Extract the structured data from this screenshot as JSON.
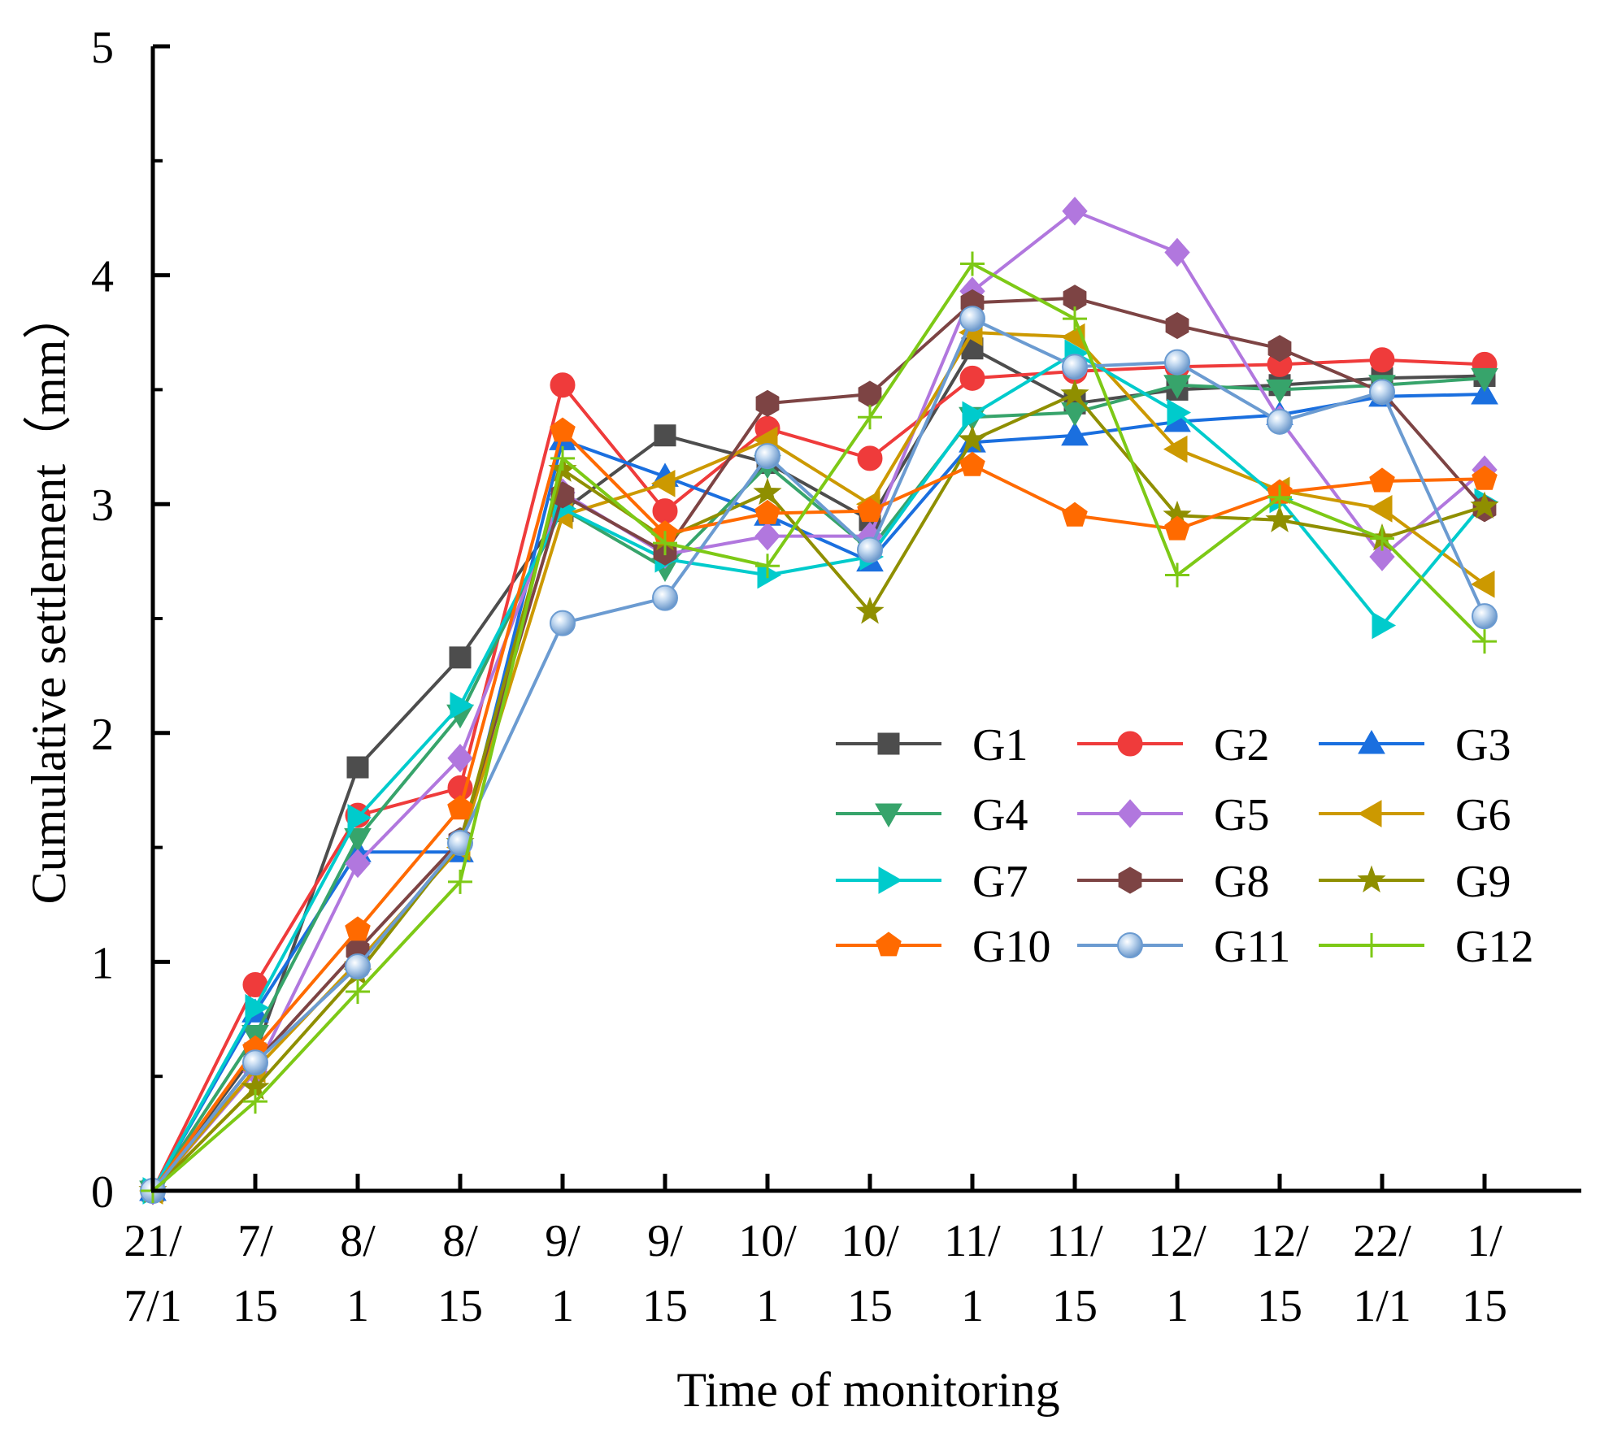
{
  "chart_data": {
    "type": "line",
    "title": "",
    "xlabel": "Time of monitoring",
    "ylabel": "Cumulative settlement（mm）",
    "ylim": [
      0,
      5
    ],
    "yticks": [
      "0",
      "1",
      "2",
      "3",
      "4",
      "5"
    ],
    "categories": [
      [
        "21/",
        "7/1"
      ],
      [
        "7/",
        "15"
      ],
      [
        "8/",
        "1"
      ],
      [
        "8/",
        "15"
      ],
      [
        "9/",
        "1"
      ],
      [
        "9/",
        "15"
      ],
      [
        "10/",
        "1"
      ],
      [
        "10/",
        "15"
      ],
      [
        "11/",
        "1"
      ],
      [
        "11/",
        "15"
      ],
      [
        "12/",
        "1"
      ],
      [
        "12/",
        "15"
      ],
      [
        "22/",
        "1/1"
      ],
      [
        "1/",
        "15"
      ]
    ],
    "legend_position": "right-center",
    "series": [
      {
        "name": "G1",
        "color": "#4d4d4d",
        "marker": "square",
        "values": [
          0,
          0.6,
          1.85,
          2.33,
          2.97,
          3.3,
          3.18,
          2.93,
          3.68,
          3.44,
          3.5,
          3.52,
          3.55,
          3.56
        ]
      },
      {
        "name": "G2",
        "color": "#ef3b3b",
        "marker": "circle",
        "values": [
          0,
          0.9,
          1.64,
          1.76,
          3.52,
          2.97,
          3.33,
          3.2,
          3.55,
          3.58,
          3.6,
          3.61,
          3.63,
          3.61
        ]
      },
      {
        "name": "G3",
        "color": "#1a6fdf",
        "marker": "triangle-up",
        "values": [
          0,
          0.78,
          1.48,
          1.48,
          3.28,
          3.12,
          2.95,
          2.75,
          3.27,
          3.3,
          3.36,
          3.39,
          3.47,
          3.48
        ]
      },
      {
        "name": "G4",
        "color": "#37a46b",
        "marker": "triangle-down",
        "values": [
          0,
          0.68,
          1.54,
          2.08,
          2.98,
          2.72,
          3.17,
          2.8,
          3.38,
          3.4,
          3.52,
          3.5,
          3.52,
          3.55
        ]
      },
      {
        "name": "G5",
        "color": "#b177de",
        "marker": "diamond",
        "values": [
          0,
          0.52,
          1.43,
          1.89,
          3.05,
          2.78,
          2.86,
          2.86,
          3.93,
          4.28,
          4.1,
          3.37,
          2.77,
          3.15
        ]
      },
      {
        "name": "G6",
        "color": "#cc9900",
        "marker": "triangle-left",
        "values": [
          0,
          0.53,
          1.0,
          1.5,
          2.95,
          3.09,
          3.28,
          3.0,
          3.75,
          3.73,
          3.24,
          3.06,
          2.98,
          2.65
        ]
      },
      {
        "name": "G7",
        "color": "#00cbcc",
        "marker": "triangle-right",
        "values": [
          0,
          0.8,
          1.63,
          2.12,
          2.98,
          2.76,
          2.69,
          2.77,
          3.39,
          3.66,
          3.4,
          3.02,
          2.47,
          3.01
        ]
      },
      {
        "name": "G8",
        "color": "#7d4444",
        "marker": "hexagon",
        "values": [
          0,
          0.56,
          1.05,
          1.53,
          3.04,
          2.79,
          3.44,
          3.48,
          3.88,
          3.9,
          3.78,
          3.68,
          3.49,
          2.98
        ]
      },
      {
        "name": "G9",
        "color": "#8f8f00",
        "marker": "star",
        "values": [
          0,
          0.45,
          0.95,
          1.52,
          3.15,
          2.85,
          3.05,
          2.53,
          3.28,
          3.48,
          2.95,
          2.93,
          2.85,
          2.99
        ]
      },
      {
        "name": "G10",
        "color": "#ff6a00",
        "marker": "pentagon",
        "values": [
          0,
          0.62,
          1.14,
          1.67,
          3.32,
          2.87,
          2.96,
          2.97,
          3.17,
          2.95,
          2.89,
          3.05,
          3.1,
          3.11
        ]
      },
      {
        "name": "G11",
        "color": "#6b9bd1",
        "marker": "sphere",
        "values": [
          0,
          0.56,
          0.98,
          1.52,
          2.48,
          2.59,
          3.21,
          2.8,
          3.81,
          3.6,
          3.62,
          3.36,
          3.49,
          2.51
        ]
      },
      {
        "name": "G12",
        "color": "#7dc916",
        "marker": "plus",
        "values": [
          0,
          0.39,
          0.87,
          1.35,
          3.2,
          2.83,
          2.73,
          3.38,
          4.05,
          3.81,
          2.69,
          3.03,
          2.85,
          2.4
        ]
      }
    ]
  }
}
